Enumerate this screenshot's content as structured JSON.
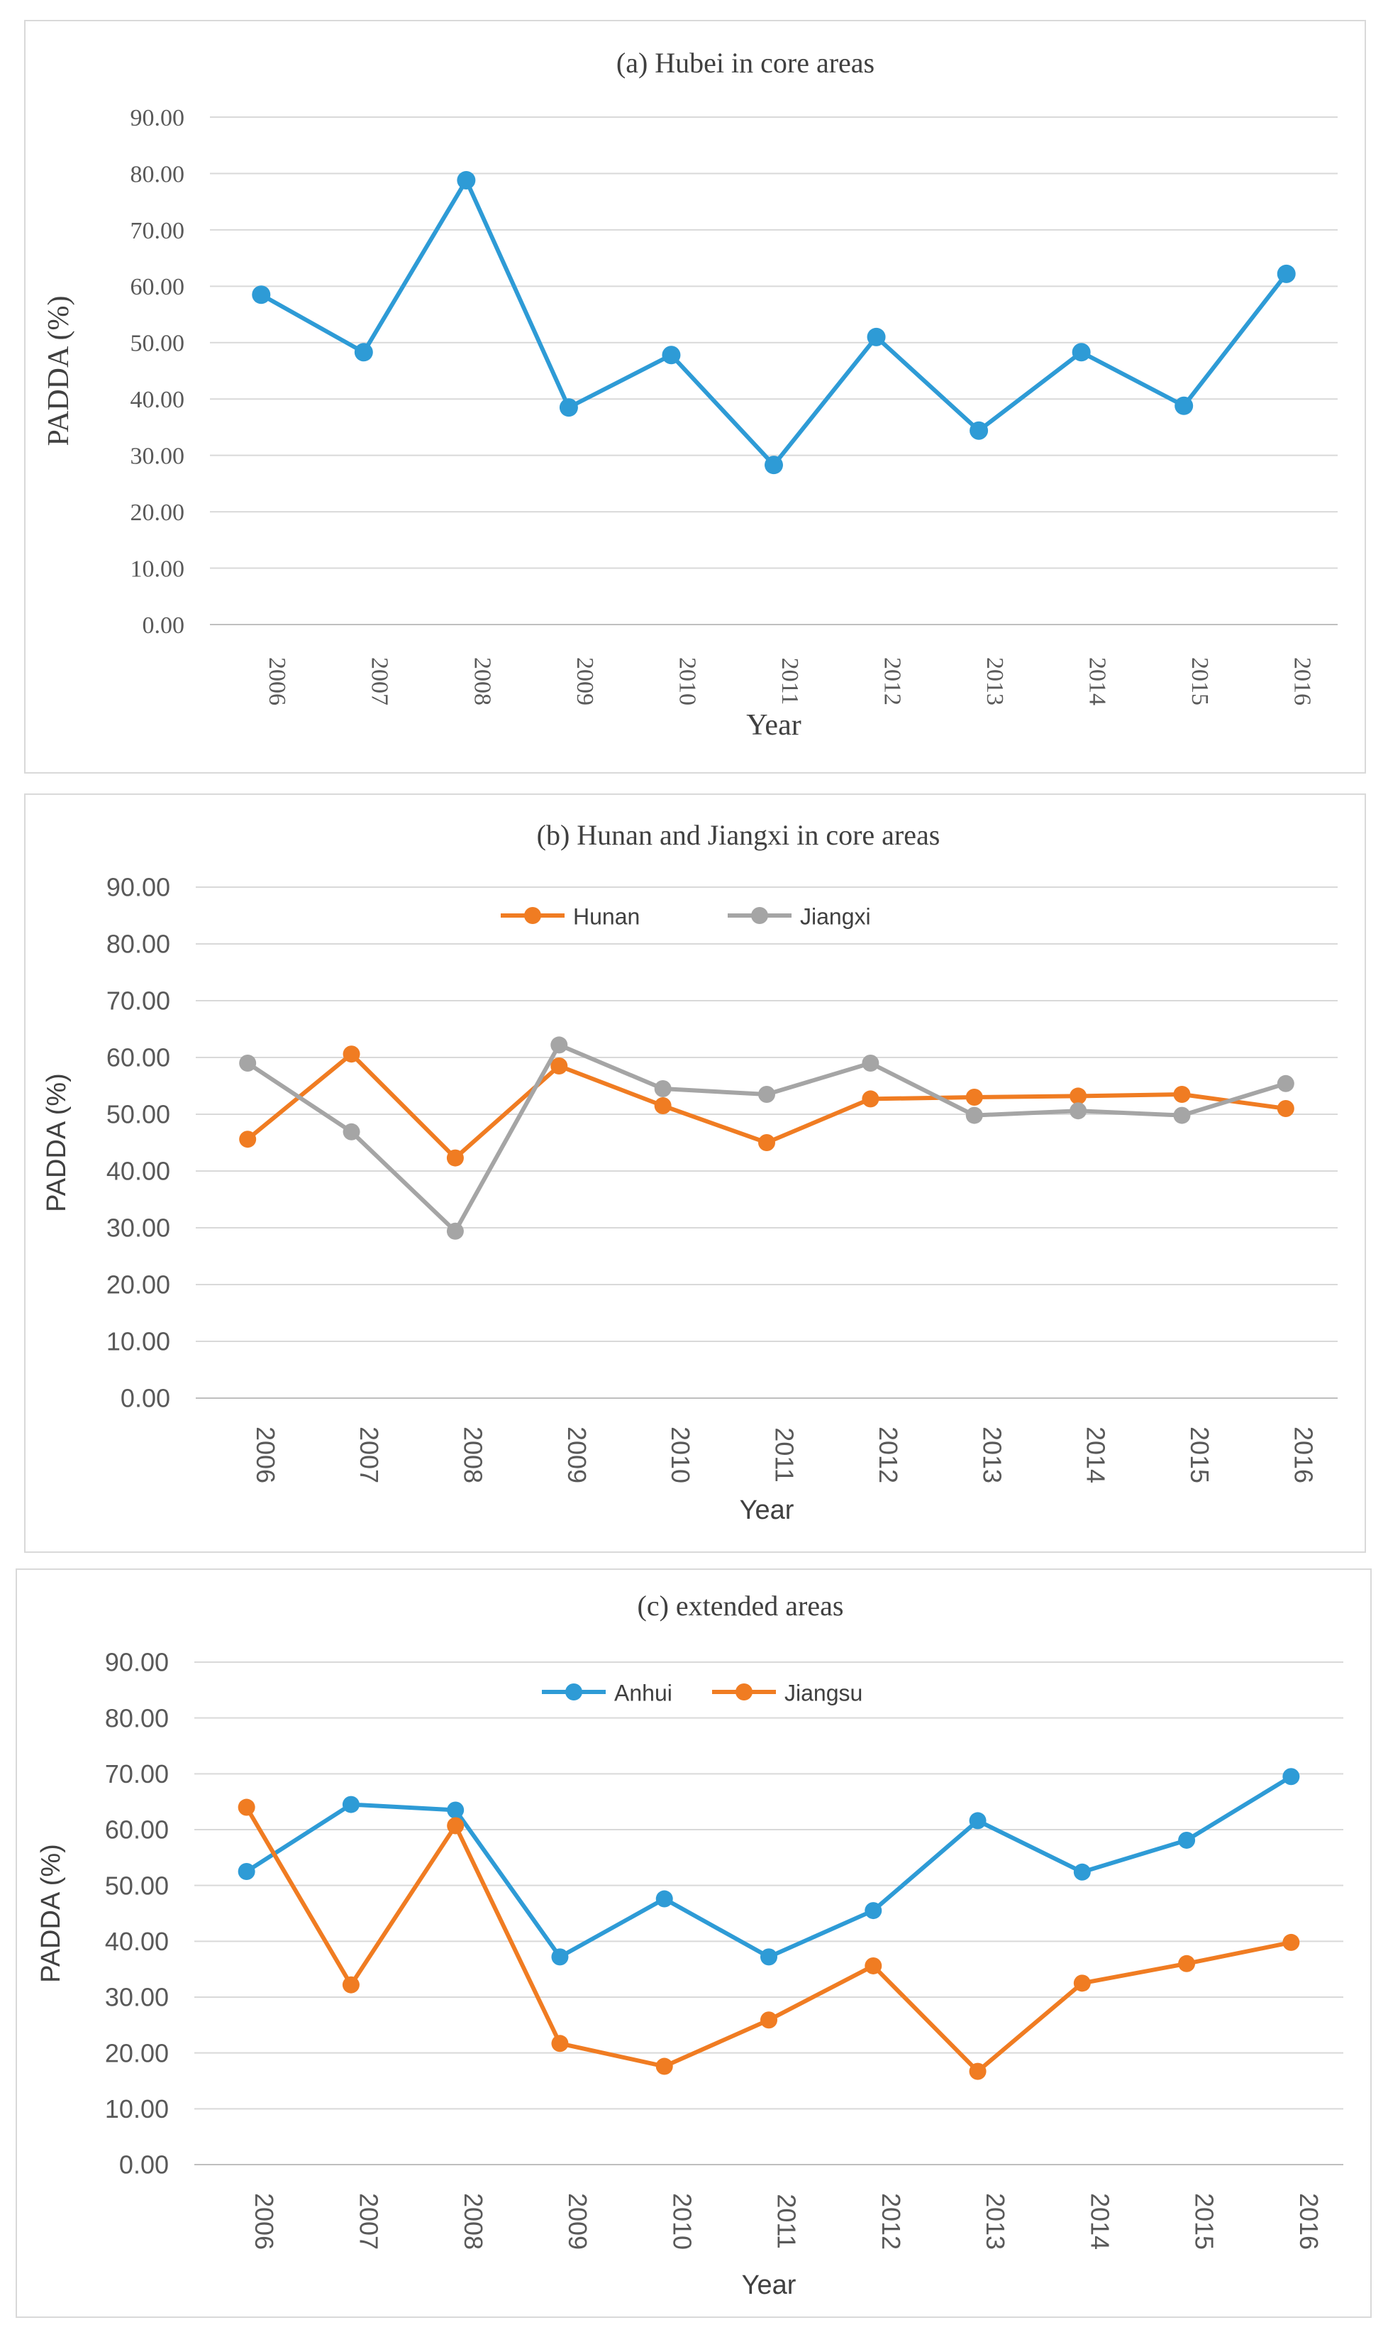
{
  "chart_data": [
    {
      "type": "line",
      "title": "(a) Hubei in core areas",
      "xlabel": "Year",
      "ylabel": "PADDA (%)",
      "ylim": [
        0,
        90
      ],
      "yticks": [
        "0.00",
        "10.00",
        "20.00",
        "30.00",
        "40.00",
        "50.00",
        "60.00",
        "70.00",
        "80.00",
        "90.00"
      ],
      "categories": [
        "2006",
        "2007",
        "2008",
        "2009",
        "2010",
        "2011",
        "2012",
        "2013",
        "2014",
        "2015",
        "2016"
      ],
      "grid": "horizontal",
      "legend": "none",
      "series": [
        {
          "name": "",
          "color": "#2e9bd6",
          "values": [
            58.5,
            48.3,
            78.8,
            38.5,
            47.8,
            28.3,
            51.0,
            34.4,
            48.3,
            38.8,
            62.2
          ]
        }
      ]
    },
    {
      "type": "line",
      "title": "(b) Hunan and Jiangxi in core areas",
      "xlabel": "Year",
      "ylabel": "PADDA (%)",
      "ylim": [
        0,
        90
      ],
      "yticks": [
        "0.00",
        "10.00",
        "20.00",
        "30.00",
        "40.00",
        "50.00",
        "60.00",
        "70.00",
        "80.00",
        "90.00"
      ],
      "categories": [
        "2006",
        "2007",
        "2008",
        "2009",
        "2010",
        "2011",
        "2012",
        "2013",
        "2014",
        "2015",
        "2016"
      ],
      "grid": "horizontal",
      "legend": "top-center",
      "series": [
        {
          "name": "Hunan",
          "color": "#f07c22",
          "values": [
            45.6,
            60.6,
            42.3,
            58.5,
            51.5,
            45.0,
            52.7,
            53.0,
            53.2,
            53.5,
            51.0
          ]
        },
        {
          "name": "Jiangxi",
          "color": "#a5a5a5",
          "values": [
            59.0,
            46.9,
            29.4,
            62.2,
            54.5,
            53.5,
            59.0,
            49.8,
            50.6,
            49.8,
            55.4
          ]
        }
      ]
    },
    {
      "type": "line",
      "title": "(c) extended areas",
      "xlabel": "Year",
      "ylabel": "PADDA (%)",
      "ylim": [
        0,
        90
      ],
      "yticks": [
        "0.00",
        "10.00",
        "20.00",
        "30.00",
        "40.00",
        "50.00",
        "60.00",
        "70.00",
        "80.00",
        "90.00"
      ],
      "categories": [
        "2006",
        "2007",
        "2008",
        "2009",
        "2010",
        "2011",
        "2012",
        "2013",
        "2014",
        "2015",
        "2016"
      ],
      "grid": "horizontal",
      "legend": "top-center",
      "series": [
        {
          "name": "Anhui",
          "color": "#2e9bd6",
          "values": [
            52.5,
            64.5,
            63.5,
            37.2,
            47.6,
            37.2,
            45.5,
            61.6,
            52.4,
            58.1,
            69.5
          ]
        },
        {
          "name": "Jiangsu",
          "color": "#f07c22",
          "values": [
            64.0,
            32.2,
            60.7,
            21.7,
            17.6,
            25.9,
            35.6,
            16.7,
            32.5,
            36.0,
            39.8
          ]
        }
      ]
    }
  ]
}
